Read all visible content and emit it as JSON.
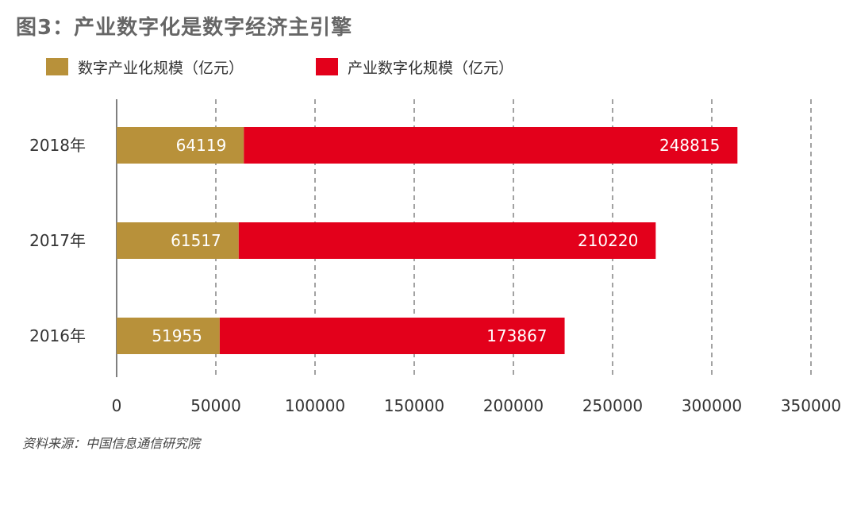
{
  "title": "图3：产业数字化是数字经济主引擎",
  "source": "资料来源：中国信息通信研究院",
  "colors": {
    "series1": "#B8913A",
    "series2": "#E3001B",
    "axis": "#555555",
    "grid": "#444444",
    "label_in_bar": "#ffffff"
  },
  "chart_data": {
    "type": "bar",
    "orientation": "horizontal",
    "stacked": true,
    "categories": [
      "2018年",
      "2017年",
      "2016年"
    ],
    "series": [
      {
        "name": "数字产业化规模（亿元）",
        "values": [
          64119,
          61517,
          51955
        ]
      },
      {
        "name": "产业数字化规模（亿元）",
        "values": [
          248815,
          210220,
          173867
        ]
      }
    ],
    "xlim": [
      0,
      350000
    ],
    "x_ticks": [
      0,
      50000,
      100000,
      150000,
      200000,
      250000,
      300000,
      350000
    ],
    "x_tick_labels": [
      "0",
      "50000",
      "100000",
      "150000",
      "200000",
      "250000",
      "300000",
      "350000"
    ],
    "grid": "vertical dashed",
    "legend_position": "top-left",
    "data_labels": true
  }
}
